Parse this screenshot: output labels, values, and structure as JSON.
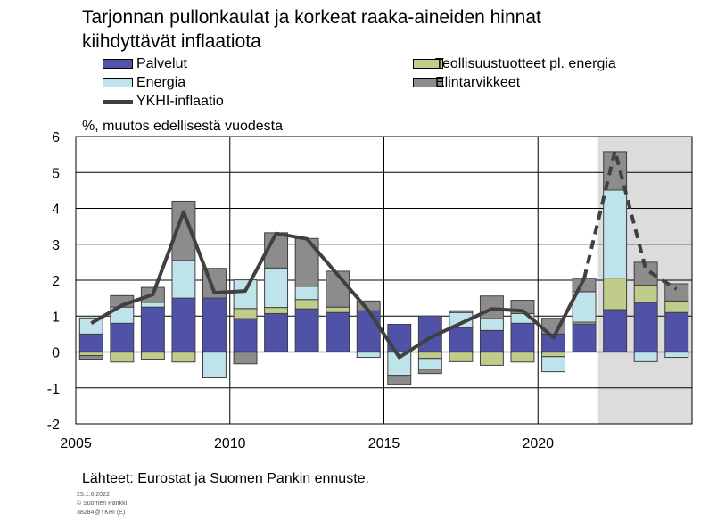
{
  "title_line1": "Tarjonnan pullonkaulat ja korkeat raaka-aineiden hinnat",
  "title_line2": "kiihdyttävät inflaatiota",
  "unit_label": "%, muutos edellisestä vuodesta",
  "source": "Lähteet: Eurostat ja Suomen Pankin ennuste.",
  "meta": [
    "25.1.6.2022",
    "© Suomen Pankki",
    "38284@YKHI (E)"
  ],
  "legend": {
    "palvelut": "Palvelut",
    "teollisuus": "Teollisuustuotteet pl. energia",
    "energia": "Energia",
    "elintarvikkeet": "Elintarvikkeet",
    "ykhi": "YKHI-inflaatio"
  },
  "colors": {
    "palvelut": "#4f52a6",
    "teollisuus": "#c0cd8a",
    "energia": "#bfe3ea",
    "elintarvikkeet": "#8c8c8c",
    "ykhi": "#404040",
    "forecast_bg": "#dcdcdc"
  },
  "chart_data": {
    "type": "bar",
    "stacked": true,
    "title": "Tarjonnan pullonkaulat ja korkeat raaka-aineiden hinnat kiihdyttävät inflaatiota",
    "ylabel": "%, muutos edellisestä vuodesta",
    "ylim": [
      -2,
      6
    ],
    "yticks": [
      -2,
      -1,
      0,
      1,
      2,
      3,
      4,
      5,
      6
    ],
    "xticks": [
      "2005",
      "2010",
      "2015",
      "2020"
    ],
    "categories": [
      2005,
      2006,
      2007,
      2008,
      2009,
      2010,
      2011,
      2012,
      2013,
      2014,
      2015,
      2016,
      2017,
      2018,
      2019,
      2020,
      2021,
      2022,
      2023,
      2024
    ],
    "forecast_from": 2022,
    "series": [
      {
        "name": "Palvelut",
        "values": [
          0.5,
          0.8,
          1.25,
          1.5,
          1.5,
          0.93,
          1.07,
          1.2,
          1.1,
          1.15,
          0.77,
          1.0,
          0.68,
          0.6,
          0.8,
          0.5,
          0.78,
          1.18,
          1.38,
          1.1
        ]
      },
      {
        "name": "Teollisuustuotteet pl. energia",
        "values": [
          -0.1,
          -0.28,
          -0.2,
          -0.28,
          0.0,
          0.28,
          0.17,
          0.26,
          0.15,
          0.0,
          0.0,
          -0.18,
          -0.27,
          -0.37,
          -0.28,
          -0.13,
          0.05,
          0.88,
          0.48,
          0.32
        ]
      },
      {
        "name": "Energia",
        "values": [
          0.45,
          0.45,
          0.13,
          1.05,
          -0.72,
          0.8,
          1.1,
          0.37,
          0.0,
          -0.15,
          -0.65,
          -0.3,
          0.42,
          0.33,
          0.27,
          -0.42,
          0.85,
          2.45,
          -0.27,
          -0.15
        ]
      },
      {
        "name": "Elintarvikkeet",
        "values": [
          -0.1,
          0.32,
          0.42,
          1.65,
          0.83,
          -0.33,
          0.98,
          1.33,
          1.0,
          0.27,
          -0.25,
          -0.12,
          0.05,
          0.63,
          0.37,
          0.44,
          0.37,
          1.07,
          0.64,
          0.48
        ]
      }
    ],
    "line": {
      "name": "YKHI-inflaatio",
      "values": [
        0.8,
        1.3,
        1.6,
        3.9,
        1.65,
        1.7,
        3.3,
        3.15,
        2.15,
        1.15,
        -0.15,
        0.4,
        0.8,
        1.2,
        1.15,
        0.4,
        2.05,
        5.6,
        2.3,
        1.75
      ]
    },
    "grid": true,
    "legend_position": "top"
  }
}
